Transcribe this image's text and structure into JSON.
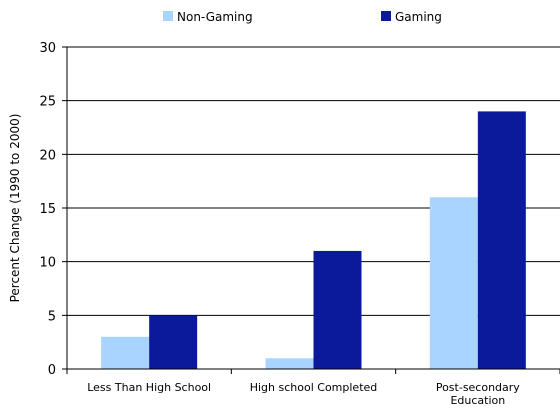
{
  "chart_data": {
    "type": "bar",
    "title": "",
    "xlabel": "",
    "ylabel": "Percent Change (1990 to 2000)",
    "ylim": [
      0,
      30
    ],
    "yticks": [
      0,
      5,
      10,
      15,
      20,
      25,
      30
    ],
    "grid": true,
    "legend_position": "top",
    "categories": [
      [
        "Less Than High School"
      ],
      [
        "High school Completed"
      ],
      [
        "Post-secondary",
        "Education"
      ]
    ],
    "series": [
      {
        "name": "Non-Gaming",
        "color": "#a8d4ff",
        "values": [
          3,
          1,
          16
        ]
      },
      {
        "name": "Gaming",
        "color": "#0a1a9a",
        "values": [
          5,
          11,
          24
        ]
      }
    ]
  }
}
